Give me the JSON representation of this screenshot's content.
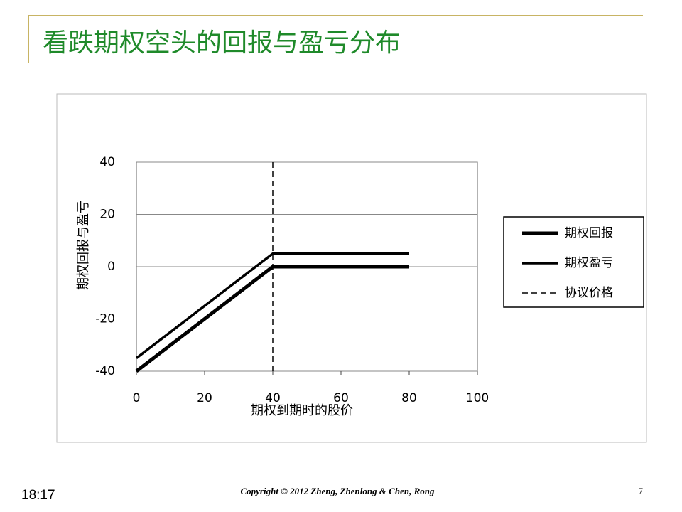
{
  "slide": {
    "title": "看跌期权空头的回报与盈亏分布",
    "time": "18:17",
    "copyright": "Copyright © 2012 Zheng, Zhenlong & Chen, Rong",
    "page": "7"
  },
  "chart_data": {
    "type": "line",
    "x_label": "期权到期时的股价",
    "y_label": "期权回报与盈亏",
    "xlim": [
      0,
      100
    ],
    "xticks": [
      0,
      20,
      40,
      60,
      80,
      100
    ],
    "ylim": [
      -40,
      40
    ],
    "yticks": [
      -40,
      -20,
      0,
      20,
      40
    ],
    "grid": true,
    "legend": "right",
    "series": [
      {
        "name": "期权回报",
        "color": "#000000",
        "style": "solid",
        "x": [
          0,
          40,
          80
        ],
        "values": [
          -40,
          0,
          0
        ]
      },
      {
        "name": "期权盈亏",
        "color": "#000000",
        "style": "solid",
        "x": [
          0,
          40,
          80
        ],
        "values": [
          -35,
          5,
          5
        ]
      },
      {
        "name": "协议价格",
        "color": "#000000",
        "style": "dashed",
        "x": [
          40,
          40
        ],
        "values": [
          -40,
          40
        ]
      }
    ]
  }
}
